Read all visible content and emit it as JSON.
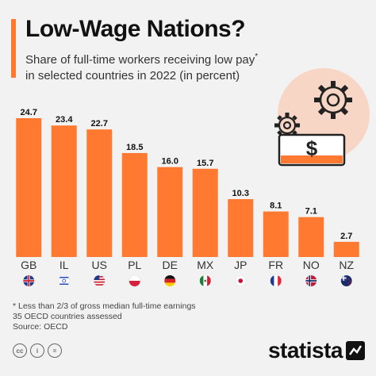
{
  "header": {
    "title": "Low-Wage Nations?",
    "subtitle": "Share of full-time workers receiving low pay",
    "subtitle_mark": "*",
    "subtitle_line2": "in selected countries in 2022 (in percent)"
  },
  "footer": {
    "note1": "* Less than 2/3 of gross median full-time earnings",
    "note2": "35 OECD countries assessed",
    "source": "Source: OECD",
    "logo_text": "statista"
  },
  "colors": {
    "bar": "#ff7a30",
    "accent": "#ff7a30",
    "illustration_circle": "#f7d6c6",
    "logo": "#111111"
  },
  "chart_data": {
    "type": "bar",
    "categories": [
      "GB",
      "IL",
      "US",
      "PL",
      "DE",
      "MX",
      "JP",
      "FR",
      "NO",
      "NZ"
    ],
    "values": [
      24.7,
      23.4,
      22.7,
      18.5,
      16.0,
      15.7,
      10.3,
      8.1,
      7.1,
      2.7
    ],
    "value_labels": [
      "24.7",
      "23.4",
      "22.7",
      "18.5",
      "16.0",
      "15.7",
      "10.3",
      "8.1",
      "7.1",
      "2.7"
    ],
    "flags": [
      "gb-flag-icon",
      "il-flag-icon",
      "us-flag-icon",
      "pl-flag-icon",
      "de-flag-icon",
      "mx-flag-icon",
      "jp-flag-icon",
      "fr-flag-icon",
      "no-flag-icon",
      "nz-flag-icon"
    ],
    "ylim": [
      0,
      24.7
    ],
    "grid": false,
    "legend": "none"
  }
}
